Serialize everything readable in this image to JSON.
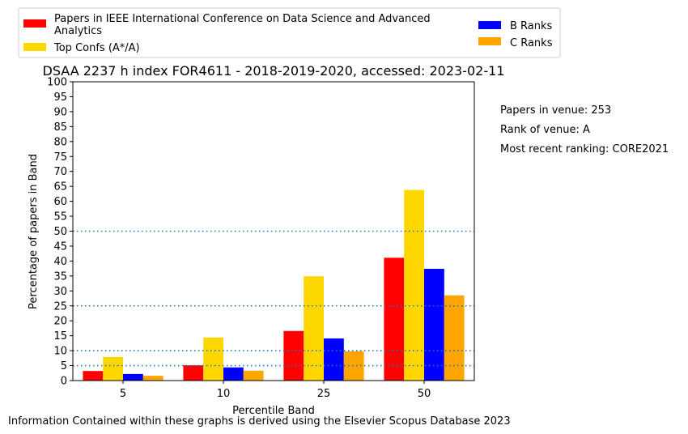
{
  "chart_data": {
    "type": "bar",
    "title": "DSAA 2237 h index FOR4611 - 2018-2019-2020, accessed: 2023-02-11",
    "xlabel": "Percentile Band",
    "ylabel": "Percentage of papers in Band",
    "categories": [
      "5",
      "10",
      "25",
      "50"
    ],
    "ylim": [
      0,
      100
    ],
    "yticks": [
      0,
      5,
      10,
      15,
      20,
      25,
      30,
      35,
      40,
      45,
      50,
      55,
      60,
      65,
      70,
      75,
      80,
      85,
      90,
      95,
      100
    ],
    "series": [
      {
        "name": "Papers in IEEE International Conference on Data Science and Advanced Analytics",
        "color": "#ff0000",
        "values": [
          3.2,
          5.1,
          16.6,
          41.1
        ]
      },
      {
        "name": "Top Confs (A*/A)",
        "color": "#ffd700",
        "values": [
          7.9,
          14.4,
          34.9,
          63.8
        ]
      },
      {
        "name": "B Ranks",
        "color": "#0000ff",
        "values": [
          2.2,
          4.4,
          14.1,
          37.4
        ]
      },
      {
        "name": "C Ranks",
        "color": "#ffa500",
        "values": [
          1.6,
          3.3,
          9.8,
          28.5
        ]
      }
    ],
    "reference_lines": [
      5,
      10,
      25,
      50
    ],
    "reference_line_color": "#1f77b4",
    "legend_position": "top",
    "grid": false
  },
  "side_info": {
    "papers": "Papers in venue: 253",
    "rank": "Rank of venue: A",
    "recent": "Most recent ranking: CORE2021"
  },
  "footer": "Information Contained within these graphs is derived using the Elsevier Scopus Database 2023"
}
